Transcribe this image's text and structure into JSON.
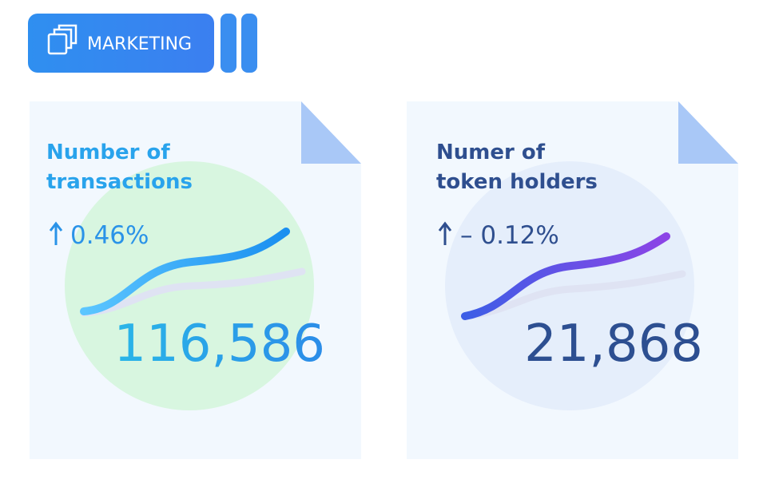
{
  "header": {
    "label": "MARKETING"
  },
  "cards": [
    {
      "title_lines": [
        "Number of",
        "transactions"
      ],
      "change": "0.46%",
      "value": "116,586"
    },
    {
      "title_lines": [
        "Numer of",
        "token holders"
      ],
      "change": "– 0.12%",
      "value": "21,868"
    }
  ]
}
